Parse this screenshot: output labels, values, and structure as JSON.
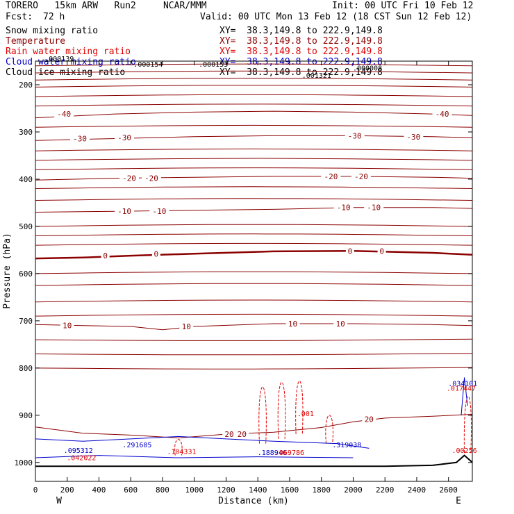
{
  "header": {
    "model": "TORERO   15km ARW   Run2     NCAR/MMM",
    "fcst_label": "Fcst:",
    "fcst_value": "72 h",
    "init": "Init: 00 UTC Fri 10 Feb 12",
    "valid": "Valid: 00 UTC Mon 13 Feb 12 (18 CST Sun 12 Feb 12)"
  },
  "fields": [
    {
      "name": "Snow mixing ratio",
      "color": "#000000",
      "xy": "XY=  38.3,149.8 to 222.9,149.8"
    },
    {
      "name": "Temperature",
      "color": "#8b0000",
      "xy": "XY=  38.3,149.8 to 222.9,149.8"
    },
    {
      "name": "Rain water mixing ratio",
      "color": "#e00000",
      "xy": "XY=  38.3,149.8 to 222.9,149.8"
    },
    {
      "name": "Cloud water mixing ratio",
      "color": "#0000cc",
      "xy": "XY=  38.3,149.8 to 222.9,149.8"
    },
    {
      "name": "Cloud ice mixing ratio",
      "color": "#000000",
      "xy": "XY=  38.3,149.8 to 222.9,149.8"
    }
  ],
  "chart_data": {
    "type": "line",
    "xlabel": "Distance (km)",
    "ylabel": "Pressure (hPa)",
    "xlim": [
      0,
      2750
    ],
    "ylim": [
      1040,
      150
    ],
    "x_ticks": [
      0,
      200,
      400,
      600,
      800,
      1000,
      1200,
      1400,
      1600,
      1800,
      2000,
      2200,
      2400,
      2600
    ],
    "y_ticks": [
      200,
      300,
      400,
      500,
      600,
      700,
      800,
      900,
      1000
    ],
    "left_end": "W",
    "right_end": "E",
    "temperature_contours": [
      {
        "level": "-40",
        "points": [
          [
            0,
            270
          ],
          [
            500,
            262
          ],
          [
            1000,
            258
          ],
          [
            1500,
            256
          ],
          [
            2000,
            258
          ],
          [
            2500,
            262
          ],
          [
            2750,
            265
          ]
        ],
        "labels": [
          [
            180,
            262
          ],
          [
            2560,
            262
          ]
        ]
      },
      {
        "level": "-30",
        "points": [
          [
            0,
            318
          ],
          [
            500,
            314
          ],
          [
            1000,
            310
          ],
          [
            1500,
            308
          ],
          [
            2000,
            308
          ],
          [
            2500,
            310
          ],
          [
            2750,
            312
          ]
        ],
        "labels": [
          [
            280,
            314
          ],
          [
            560,
            312
          ],
          [
            2010,
            308
          ],
          [
            2380,
            310
          ]
        ]
      },
      {
        "level": "-20",
        "points": [
          [
            0,
            402
          ],
          [
            500,
            398
          ],
          [
            1000,
            396
          ],
          [
            1500,
            394
          ],
          [
            2000,
            394
          ],
          [
            2500,
            396
          ],
          [
            2750,
            398
          ]
        ],
        "labels": [
          [
            590,
            398
          ],
          [
            730,
            398
          ],
          [
            1860,
            394
          ],
          [
            2050,
            394
          ]
        ]
      },
      {
        "level": "-10",
        "points": [
          [
            0,
            470
          ],
          [
            500,
            468
          ],
          [
            1000,
            466
          ],
          [
            1500,
            464
          ],
          [
            2000,
            460
          ],
          [
            2500,
            460
          ],
          [
            2750,
            462
          ]
        ],
        "labels": [
          [
            560,
            468
          ],
          [
            780,
            468
          ],
          [
            1940,
            460
          ],
          [
            2130,
            460
          ]
        ]
      },
      {
        "level": "0",
        "points": [
          [
            0,
            568
          ],
          [
            300,
            566
          ],
          [
            600,
            562
          ],
          [
            1000,
            558
          ],
          [
            1500,
            553
          ],
          [
            2000,
            552
          ],
          [
            2500,
            556
          ],
          [
            2750,
            560
          ]
        ],
        "labels": [
          [
            440,
            562
          ],
          [
            760,
            558
          ],
          [
            1980,
            552
          ],
          [
            2180,
            552
          ]
        ]
      },
      {
        "level": "10",
        "points": [
          [
            0,
            708
          ],
          [
            300,
            710
          ],
          [
            600,
            712
          ],
          [
            800,
            719
          ],
          [
            1000,
            712
          ],
          [
            1500,
            706
          ],
          [
            2000,
            706
          ],
          [
            2500,
            708
          ],
          [
            2750,
            710
          ]
        ],
        "labels": [
          [
            200,
            710
          ],
          [
            950,
            712
          ],
          [
            1620,
            706
          ],
          [
            1920,
            706
          ]
        ]
      },
      {
        "level": "20",
        "points": [
          [
            0,
            925
          ],
          [
            300,
            938
          ],
          [
            600,
            942
          ],
          [
            900,
            948
          ],
          [
            1200,
            940
          ],
          [
            1500,
            936
          ],
          [
            1800,
            926
          ],
          [
            2000,
            914
          ],
          [
            2200,
            906
          ],
          [
            2500,
            902
          ],
          [
            2750,
            898
          ]
        ],
        "labels": [
          [
            1220,
            940
          ],
          [
            1300,
            940
          ],
          [
            2100,
            908
          ]
        ]
      }
    ],
    "annotations": [
      {
        "text": ".000139",
        "x": 150,
        "p": 150,
        "field": "Cloud ice mixing ratio"
      },
      {
        "text": ".000154",
        "x": 710,
        "p": 162,
        "field": "Cloud ice mixing ratio"
      },
      {
        "text": ".000153",
        "x": 1120,
        "p": 162,
        "field": "Cloud ice mixing ratio"
      },
      {
        "text": ".001321",
        "x": 1770,
        "p": 185,
        "field": "Cloud ice mixing ratio"
      },
      {
        "text": ".000008",
        "x": 2090,
        "p": 170,
        "field": "Cloud ice mixing ratio"
      },
      {
        "text": ".001",
        "x": 1700,
        "p": 902,
        "field": "Rain water mixing ratio"
      },
      {
        "text": ".104331",
        "x": 920,
        "p": 982,
        "field": "Rain water mixing ratio"
      },
      {
        "text": ".042022",
        "x": 290,
        "p": 995,
        "field": "Rain water mixing ratio"
      },
      {
        "text": ".017447",
        "x": 2680,
        "p": 848,
        "field": "Rain water mixing ratio"
      },
      {
        "text": ".00256",
        "x": 2700,
        "p": 980,
        "field": "Rain water mixing ratio"
      },
      {
        "text": ".095312",
        "x": 270,
        "p": 980,
        "field": "Cloud water mixing ratio"
      },
      {
        "text": ".291605",
        "x": 640,
        "p": 968,
        "field": "Cloud water mixing ratio"
      },
      {
        "text": ".188946",
        "x": 1490,
        "p": 984,
        "field": "Cloud water mixing ratio"
      },
      {
        "text": ".319038",
        "x": 1960,
        "p": 968,
        "field": "Cloud water mixing ratio"
      },
      {
        "text": ".034101",
        "x": 2690,
        "p": 838,
        "field": "Cloud water mixing ratio"
      },
      {
        "text": ".069786",
        "x": 1600,
        "p": 984,
        "field": "Rain water mixing ratio"
      }
    ]
  }
}
